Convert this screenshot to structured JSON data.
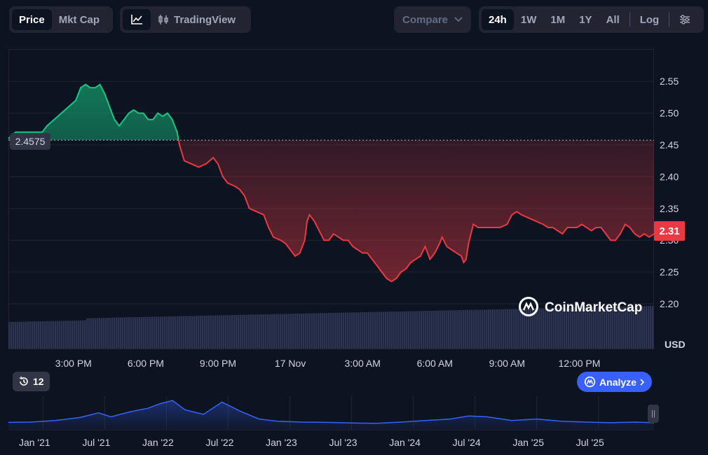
{
  "toolbar": {
    "type_tabs": [
      "Price",
      "Mkt Cap"
    ],
    "tradingview_label": "TradingView",
    "compare_label": "Compare",
    "range_tabs": [
      "24h",
      "1W",
      "1M",
      "1Y",
      "All"
    ],
    "log_label": "Log"
  },
  "colors": {
    "up": "#16c784",
    "down": "#ea3943",
    "volume": "#2e3553",
    "brush": "#3861fb",
    "accent": "#3861fb"
  },
  "chart_data": [
    {
      "type": "line",
      "ylabel": "USD",
      "ylim": [
        2.16,
        2.6
      ],
      "yticks": [
        2.2,
        2.25,
        2.3,
        2.35,
        2.4,
        2.45,
        2.5,
        2.55
      ],
      "x_ticks": [
        "3:00 PM",
        "6:00 PM",
        "9:00 PM",
        "17 Nov",
        "3:00 AM",
        "6:00 AM",
        "9:00 AM",
        "12:00 PM"
      ],
      "x_hours": [
        15,
        18,
        21,
        24,
        27,
        30,
        33,
        36
      ],
      "xlim_hours": [
        13.0,
        37.6
      ],
      "baseline": 2.4575,
      "baseline_label": "2.4575",
      "current_label": "2.31",
      "price_points": [
        [
          13.0,
          2.46
        ],
        [
          13.3,
          2.47
        ],
        [
          13.6,
          2.47
        ],
        [
          14.0,
          2.47
        ],
        [
          14.4,
          2.47
        ],
        [
          14.6,
          2.48
        ],
        [
          14.9,
          2.49
        ],
        [
          15.2,
          2.5
        ],
        [
          15.5,
          2.51
        ],
        [
          15.8,
          2.52
        ],
        [
          16.0,
          2.54
        ],
        [
          16.2,
          2.545
        ],
        [
          16.4,
          2.54
        ],
        [
          16.6,
          2.54
        ],
        [
          16.8,
          2.545
        ],
        [
          17.0,
          2.53
        ],
        [
          17.2,
          2.51
        ],
        [
          17.4,
          2.49
        ],
        [
          17.6,
          2.48
        ],
        [
          17.8,
          2.49
        ],
        [
          18.0,
          2.5
        ],
        [
          18.2,
          2.505
        ],
        [
          18.4,
          2.5
        ],
        [
          18.6,
          2.5
        ],
        [
          18.8,
          2.49
        ],
        [
          19.0,
          2.49
        ],
        [
          19.2,
          2.5
        ],
        [
          19.4,
          2.495
        ],
        [
          19.6,
          2.5
        ],
        [
          19.8,
          2.49
        ],
        [
          20.0,
          2.47
        ],
        [
          20.1,
          2.45
        ],
        [
          20.3,
          2.425
        ],
        [
          20.6,
          2.42
        ],
        [
          20.9,
          2.415
        ],
        [
          21.2,
          2.42
        ],
        [
          21.5,
          2.43
        ],
        [
          21.7,
          2.42
        ],
        [
          21.9,
          2.4
        ],
        [
          22.1,
          2.39
        ],
        [
          22.4,
          2.385
        ],
        [
          22.6,
          2.38
        ],
        [
          22.8,
          2.37
        ],
        [
          23.0,
          2.35
        ],
        [
          23.3,
          2.345
        ],
        [
          23.6,
          2.34
        ],
        [
          23.8,
          2.32
        ],
        [
          24.0,
          2.305
        ],
        [
          24.3,
          2.3
        ],
        [
          24.5,
          2.295
        ],
        [
          24.7,
          2.285
        ],
        [
          24.9,
          2.275
        ],
        [
          25.1,
          2.28
        ],
        [
          25.3,
          2.3
        ],
        [
          25.4,
          2.33
        ],
        [
          25.5,
          2.34
        ],
        [
          25.7,
          2.33
        ],
        [
          25.9,
          2.315
        ],
        [
          26.1,
          2.3
        ],
        [
          26.3,
          2.3
        ],
        [
          26.5,
          2.31
        ],
        [
          26.7,
          2.305
        ],
        [
          26.9,
          2.3
        ],
        [
          27.1,
          2.3
        ],
        [
          27.3,
          2.29
        ],
        [
          27.5,
          2.285
        ],
        [
          27.7,
          2.28
        ],
        [
          27.9,
          2.28
        ],
        [
          28.1,
          2.27
        ],
        [
          28.3,
          2.26
        ],
        [
          28.5,
          2.25
        ],
        [
          28.7,
          2.24
        ],
        [
          28.9,
          2.235
        ],
        [
          29.1,
          2.24
        ],
        [
          29.3,
          2.25
        ],
        [
          29.5,
          2.255
        ],
        [
          29.7,
          2.265
        ],
        [
          29.9,
          2.27
        ],
        [
          30.1,
          2.275
        ],
        [
          30.3,
          2.29
        ],
        [
          30.5,
          2.27
        ],
        [
          30.7,
          2.28
        ],
        [
          30.9,
          2.295
        ],
        [
          31.0,
          2.305
        ],
        [
          31.2,
          2.29
        ],
        [
          31.4,
          2.285
        ],
        [
          31.6,
          2.28
        ],
        [
          31.8,
          2.275
        ],
        [
          31.9,
          2.265
        ],
        [
          32.0,
          2.27
        ],
        [
          32.1,
          2.295
        ],
        [
          32.2,
          2.31
        ],
        [
          32.3,
          2.325
        ],
        [
          32.5,
          2.32
        ],
        [
          32.8,
          2.32
        ],
        [
          33.1,
          2.32
        ],
        [
          33.4,
          2.32
        ],
        [
          33.7,
          2.325
        ],
        [
          33.9,
          2.34
        ],
        [
          34.1,
          2.345
        ],
        [
          34.3,
          2.34
        ],
        [
          34.6,
          2.335
        ],
        [
          34.9,
          2.33
        ],
        [
          35.2,
          2.325
        ],
        [
          35.4,
          2.32
        ],
        [
          35.6,
          2.32
        ],
        [
          35.8,
          2.315
        ],
        [
          36.0,
          2.31
        ],
        [
          36.2,
          2.32
        ],
        [
          36.4,
          2.32
        ],
        [
          36.6,
          2.32
        ],
        [
          36.8,
          2.325
        ],
        [
          37.0,
          2.32
        ],
        [
          37.2,
          2.315
        ],
        [
          37.4,
          2.32
        ],
        [
          37.6,
          2.32
        ],
        [
          37.8,
          2.31
        ],
        [
          38.0,
          2.3
        ],
        [
          38.2,
          2.3
        ],
        [
          38.4,
          2.31
        ],
        [
          38.6,
          2.325
        ],
        [
          38.8,
          2.32
        ],
        [
          39.0,
          2.31
        ],
        [
          39.2,
          2.305
        ],
        [
          39.4,
          2.31
        ],
        [
          39.6,
          2.305
        ],
        [
          39.8,
          2.31
        ]
      ]
    },
    {
      "type": "area",
      "x_ticks": [
        "Jan '21",
        "Jul '21",
        "Jan '22",
        "Jul '22",
        "Jan '23",
        "Jul '23",
        "Jan '24",
        "Jul '24",
        "Jan '25",
        "Jul '25"
      ],
      "x_ticks_years": [
        2021.0,
        2021.5,
        2022.0,
        2022.5,
        2023.0,
        2023.5,
        2024.0,
        2024.5,
        2025.0,
        2025.5
      ],
      "points": [
        [
          2020.72,
          2.4
        ],
        [
          2020.9,
          2.5
        ],
        [
          2021.1,
          3.0
        ],
        [
          2021.3,
          4.0
        ],
        [
          2021.45,
          5.5
        ],
        [
          2021.55,
          4.2
        ],
        [
          2021.7,
          5.8
        ],
        [
          2021.85,
          7.0
        ],
        [
          2021.95,
          8.5
        ],
        [
          2022.05,
          9.5
        ],
        [
          2022.1,
          8.0
        ],
        [
          2022.15,
          6.5
        ],
        [
          2022.3,
          5.0
        ],
        [
          2022.45,
          9.0
        ],
        [
          2022.6,
          6.0
        ],
        [
          2022.75,
          3.5
        ],
        [
          2022.9,
          2.8
        ],
        [
          2023.1,
          2.5
        ],
        [
          2023.3,
          2.4
        ],
        [
          2023.5,
          2.2
        ],
        [
          2023.7,
          2.1
        ],
        [
          2023.9,
          2.5
        ],
        [
          2024.1,
          3.0
        ],
        [
          2024.3,
          3.5
        ],
        [
          2024.45,
          4.5
        ],
        [
          2024.6,
          4.2
        ],
        [
          2024.8,
          3.0
        ],
        [
          2025.0,
          3.5
        ],
        [
          2025.2,
          2.8
        ],
        [
          2025.4,
          2.5
        ],
        [
          2025.6,
          2.3
        ],
        [
          2025.8,
          2.5
        ],
        [
          2025.95,
          2.3
        ]
      ]
    }
  ]
}
